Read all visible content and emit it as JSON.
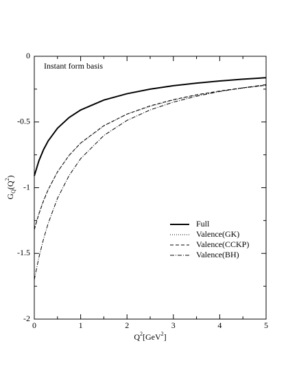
{
  "chart_data": {
    "type": "line",
    "annotation": "Instant form basis",
    "x_label": [
      "Q",
      "2",
      "[GeV",
      "2",
      "]"
    ],
    "y_label": [
      "G",
      "Q",
      "(Q",
      "2",
      ")"
    ],
    "x": [
      0,
      0.1,
      0.2,
      0.3,
      0.5,
      0.75,
      1,
      1.5,
      2,
      2.5,
      3,
      3.5,
      4,
      4.5,
      5
    ],
    "series": [
      {
        "name": "Full",
        "color": "#000000",
        "line_style": "solid",
        "line_width": 2,
        "values": [
          -0.91,
          -0.795,
          -0.71,
          -0.644,
          -0.548,
          -0.466,
          -0.409,
          -0.333,
          -0.285,
          -0.25,
          -0.224,
          -0.204,
          -0.188,
          -0.174,
          -0.163
        ]
      },
      {
        "name": "Valence(GK)",
        "color": "#000000",
        "line_style": "dotted",
        "line_width": 1,
        "values": [
          -1.31,
          -1.193,
          -1.095,
          -1.012,
          -0.88,
          -0.755,
          -0.662,
          -0.53,
          -0.44,
          -0.381,
          -0.333,
          -0.296,
          -0.267,
          -0.243,
          -0.222
        ]
      },
      {
        "name": "Valence(CCKP)",
        "color": "#000000",
        "line_style": "dashed",
        "line_width": 1,
        "values": [
          -1.32,
          -1.2,
          -1.1,
          -1.015,
          -0.88,
          -0.754,
          -0.66,
          -0.528,
          -0.44,
          -0.377,
          -0.33,
          -0.293,
          -0.264,
          -0.24,
          -0.22
        ]
      },
      {
        "name": "Valence(BH)",
        "color": "#000000",
        "line_style": "dashdot",
        "line_width": 1,
        "values": [
          -1.7,
          -1.53,
          -1.39,
          -1.271,
          -1.081,
          -0.908,
          -0.779,
          -0.603,
          -0.488,
          -0.408,
          -0.349,
          -0.304,
          -0.268,
          -0.24,
          -0.216
        ]
      }
    ],
    "xlim": [
      0,
      5
    ],
    "xticks": [
      0,
      1,
      2,
      3,
      4,
      5
    ],
    "ylim": [
      -2,
      0
    ],
    "yticks": [
      0,
      -0.5,
      -1,
      -1.5,
      -2
    ],
    "grid": false,
    "legend": "lower right"
  }
}
